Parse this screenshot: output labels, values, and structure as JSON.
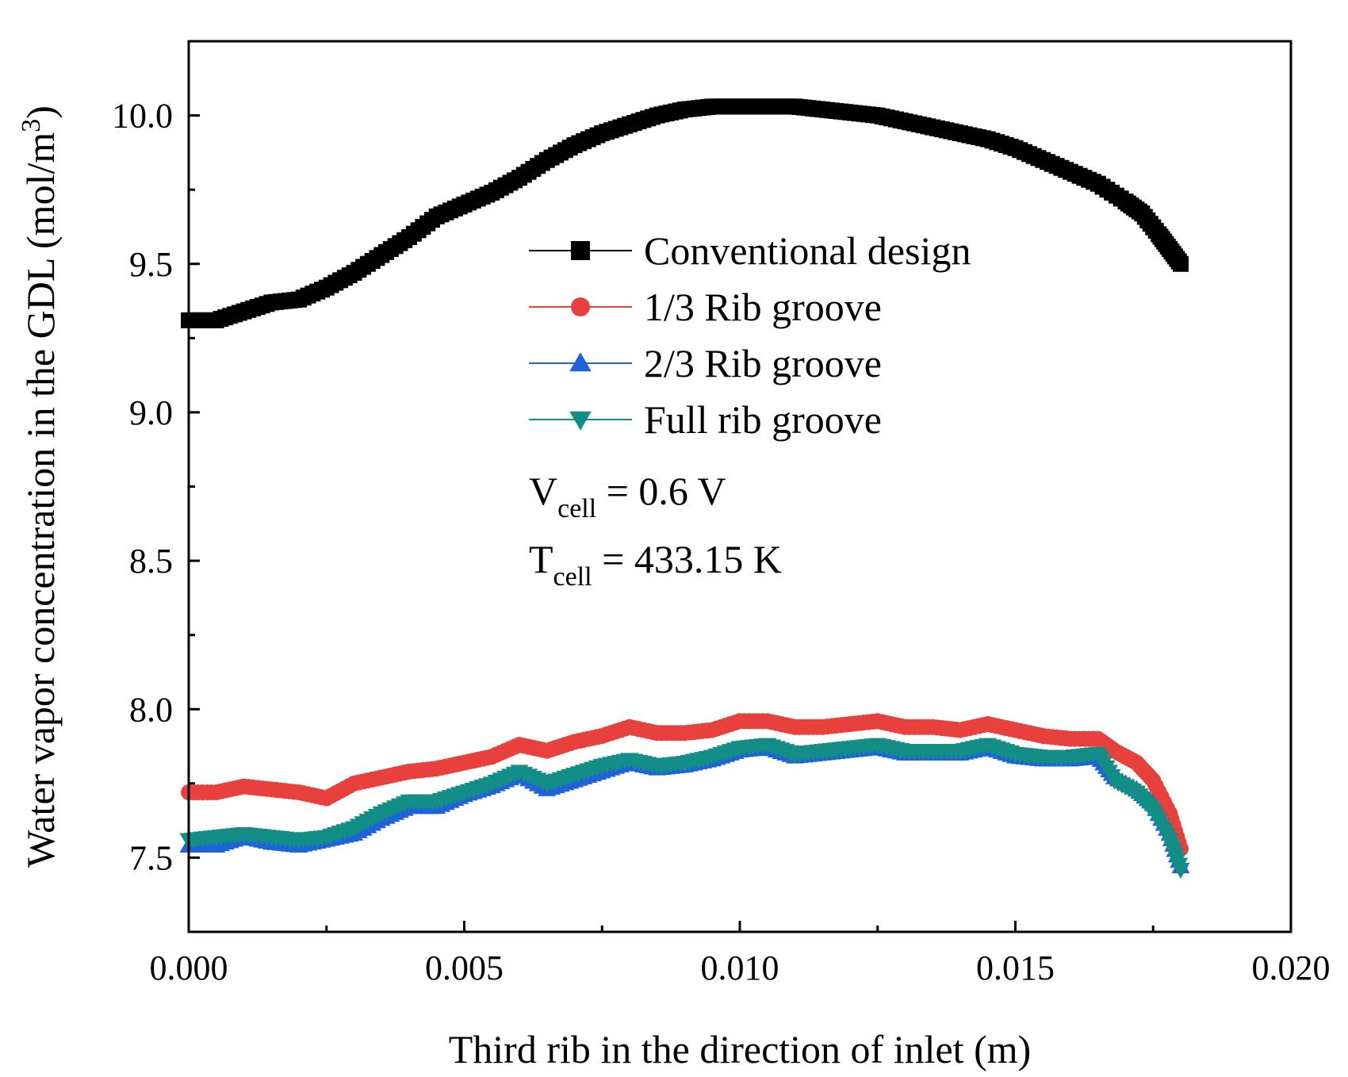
{
  "chart_data": {
    "type": "scatter",
    "xlabel": "Third rib in the direction of inlet (m)",
    "ylabel_main": "Water vapor concentration in the GDL (mol/m",
    "ylabel_sup": "3",
    "ylabel_close": ")",
    "xlim": [
      0.0,
      0.02
    ],
    "ylim": [
      7.25,
      10.25
    ],
    "x_ticks": [
      0.0,
      0.005,
      0.01,
      0.015,
      0.02
    ],
    "x_tick_labels": [
      "0.000",
      "0.005",
      "0.010",
      "0.015",
      "0.020"
    ],
    "y_ticks": [
      7.5,
      8.0,
      8.5,
      9.0,
      9.5,
      10.0
    ],
    "y_tick_labels": [
      "7.5",
      "8.0",
      "8.5",
      "9.0",
      "9.5",
      "10.0"
    ],
    "legend_position": "center-top",
    "series": [
      {
        "name": "Conventional design",
        "color": "#000000",
        "marker": "square",
        "x": [
          0.0,
          0.0005,
          0.001,
          0.0015,
          0.002,
          0.0025,
          0.003,
          0.0035,
          0.004,
          0.0045,
          0.005,
          0.0055,
          0.006,
          0.0065,
          0.007,
          0.0075,
          0.008,
          0.0085,
          0.009,
          0.0095,
          0.01,
          0.0105,
          0.011,
          0.0115,
          0.012,
          0.0125,
          0.013,
          0.0135,
          0.014,
          0.0145,
          0.015,
          0.0155,
          0.016,
          0.0165,
          0.017,
          0.0173,
          0.0176,
          0.0178,
          0.018
        ],
        "y": [
          9.31,
          9.31,
          9.34,
          9.37,
          9.38,
          9.42,
          9.47,
          9.53,
          9.59,
          9.66,
          9.7,
          9.74,
          9.79,
          9.85,
          9.9,
          9.94,
          9.97,
          10.0,
          10.02,
          10.03,
          10.03,
          10.03,
          10.03,
          10.02,
          10.01,
          10.0,
          9.98,
          9.96,
          9.94,
          9.92,
          9.89,
          9.85,
          9.81,
          9.77,
          9.71,
          9.67,
          9.6,
          9.55,
          9.5
        ]
      },
      {
        "name": "1/3 Rib groove",
        "color": "#e8403c",
        "marker": "circle",
        "x": [
          0.0,
          0.0005,
          0.001,
          0.0015,
          0.002,
          0.0025,
          0.003,
          0.0035,
          0.004,
          0.0045,
          0.005,
          0.0055,
          0.006,
          0.0065,
          0.007,
          0.0075,
          0.008,
          0.0085,
          0.009,
          0.0095,
          0.01,
          0.0105,
          0.011,
          0.0115,
          0.012,
          0.0125,
          0.013,
          0.0135,
          0.014,
          0.0145,
          0.015,
          0.0155,
          0.016,
          0.0165,
          0.0168,
          0.0172,
          0.0175,
          0.0178,
          0.018
        ],
        "y": [
          7.72,
          7.72,
          7.74,
          7.73,
          7.72,
          7.7,
          7.75,
          7.77,
          7.79,
          7.8,
          7.82,
          7.84,
          7.88,
          7.86,
          7.89,
          7.91,
          7.94,
          7.92,
          7.92,
          7.93,
          7.96,
          7.96,
          7.94,
          7.94,
          7.95,
          7.96,
          7.94,
          7.94,
          7.93,
          7.95,
          7.93,
          7.91,
          7.9,
          7.9,
          7.86,
          7.82,
          7.76,
          7.65,
          7.53
        ]
      },
      {
        "name": "2/3 Rib groove",
        "color": "#1f62d9",
        "marker": "triangle-up",
        "x": [
          0.0,
          0.0005,
          0.001,
          0.0015,
          0.002,
          0.0025,
          0.003,
          0.0035,
          0.004,
          0.0045,
          0.005,
          0.0055,
          0.006,
          0.0065,
          0.007,
          0.0075,
          0.008,
          0.0085,
          0.009,
          0.0095,
          0.01,
          0.0105,
          0.011,
          0.0115,
          0.012,
          0.0125,
          0.013,
          0.0135,
          0.014,
          0.0145,
          0.015,
          0.0155,
          0.016,
          0.0165,
          0.0168,
          0.0172,
          0.0175,
          0.0178,
          0.018
        ],
        "y": [
          7.54,
          7.54,
          7.57,
          7.55,
          7.54,
          7.56,
          7.58,
          7.63,
          7.67,
          7.67,
          7.71,
          7.74,
          7.78,
          7.73,
          7.76,
          7.79,
          7.82,
          7.8,
          7.81,
          7.83,
          7.86,
          7.87,
          7.84,
          7.85,
          7.86,
          7.87,
          7.85,
          7.85,
          7.85,
          7.87,
          7.84,
          7.83,
          7.83,
          7.84,
          7.77,
          7.73,
          7.68,
          7.58,
          7.47
        ]
      },
      {
        "name": "Full rib groove",
        "color": "#138e86",
        "marker": "triangle-down",
        "x": [
          0.0,
          0.0005,
          0.001,
          0.0015,
          0.002,
          0.0025,
          0.003,
          0.0035,
          0.004,
          0.0045,
          0.005,
          0.0055,
          0.006,
          0.0065,
          0.007,
          0.0075,
          0.008,
          0.0085,
          0.009,
          0.0095,
          0.01,
          0.0105,
          0.011,
          0.0115,
          0.012,
          0.0125,
          0.013,
          0.0135,
          0.014,
          0.0145,
          0.015,
          0.0155,
          0.016,
          0.0165,
          0.0168,
          0.0172,
          0.0175,
          0.0178,
          0.018
        ],
        "y": [
          7.56,
          7.57,
          7.58,
          7.57,
          7.56,
          7.57,
          7.6,
          7.65,
          7.69,
          7.69,
          7.72,
          7.75,
          7.79,
          7.75,
          7.78,
          7.81,
          7.83,
          7.81,
          7.82,
          7.84,
          7.87,
          7.88,
          7.85,
          7.86,
          7.87,
          7.88,
          7.86,
          7.86,
          7.86,
          7.88,
          7.85,
          7.84,
          7.84,
          7.85,
          7.76,
          7.72,
          7.66,
          7.56,
          7.46
        ]
      }
    ],
    "annotations": [
      {
        "main": "V",
        "sub": "cell",
        "rest": " = 0.6 V"
      },
      {
        "main": "T",
        "sub": "cell",
        "rest": " = 433.15 K"
      }
    ]
  }
}
